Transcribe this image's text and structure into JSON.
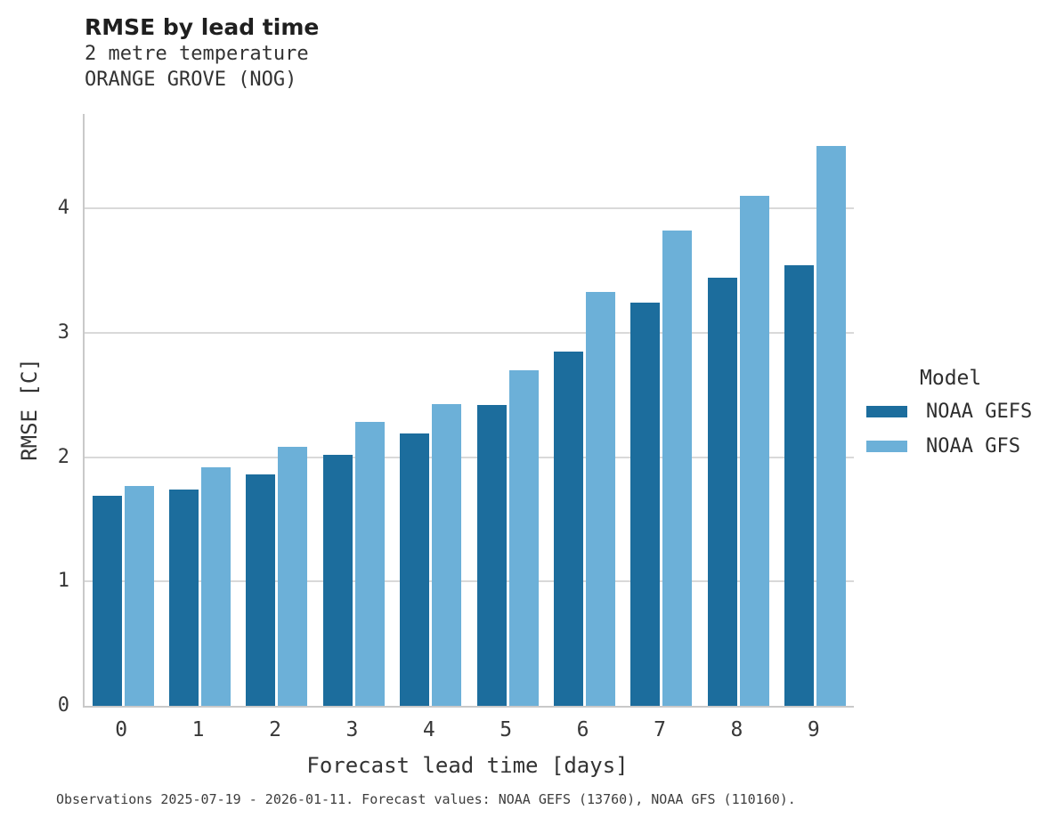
{
  "header": {
    "title": "RMSE by lead time",
    "subtitle_line1": "2 metre temperature",
    "subtitle_line2": "ORANGE GROVE (NOG)"
  },
  "chart_data": {
    "type": "bar",
    "title": "RMSE by lead time",
    "subtitle": [
      "2 metre temperature",
      "ORANGE GROVE (NOG)"
    ],
    "categories": [
      "0",
      "1",
      "2",
      "3",
      "4",
      "5",
      "6",
      "7",
      "8",
      "9"
    ],
    "series": [
      {
        "name": "NOAA GEFS",
        "color": "#1c6d9d",
        "values": [
          1.69,
          1.74,
          1.86,
          2.02,
          2.19,
          2.42,
          2.85,
          3.24,
          3.44,
          3.54
        ]
      },
      {
        "name": "NOAA GFS",
        "color": "#6cb0d8",
        "values": [
          1.77,
          1.92,
          2.08,
          2.28,
          2.43,
          2.7,
          3.33,
          3.82,
          4.1,
          4.5
        ]
      }
    ],
    "xlabel": "Forecast lead time [days]",
    "ylabel": "RMSE [C]",
    "ylim": [
      0,
      4.76
    ],
    "yticks": [
      0,
      1,
      2,
      3,
      4
    ],
    "grid": "horizontal gridlines at integer y values, drawn behind bars",
    "legend_title": "Model",
    "legend_position": "right"
  },
  "legend": {
    "title": "Model",
    "items": [
      {
        "label": "NOAA GEFS",
        "color": "#1c6d9d"
      },
      {
        "label": "NOAA GFS",
        "color": "#6cb0d8"
      }
    ]
  },
  "caption": "Observations 2025-07-19 - 2026-01-11. Forecast values: NOAA GEFS (13760), NOAA GFS (110160)."
}
